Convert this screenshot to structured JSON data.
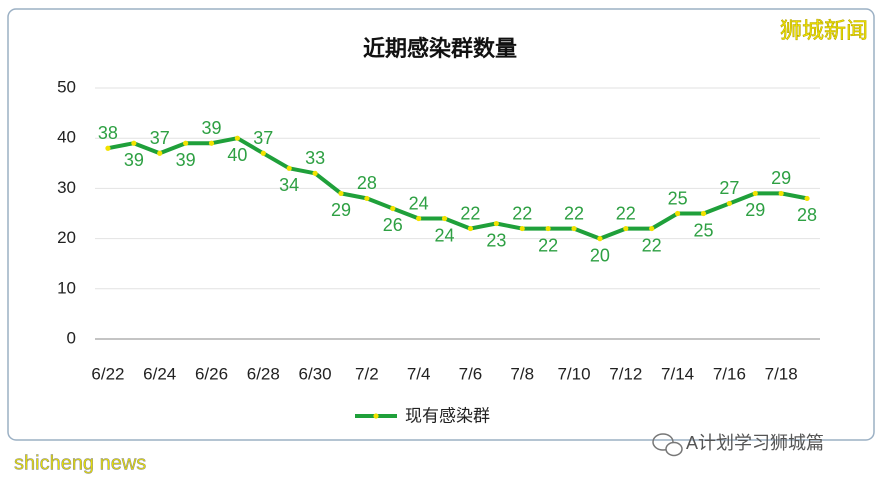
{
  "chart_data": {
    "type": "line",
    "title": "近期感染群数量",
    "categories": [
      "6/22",
      null,
      "6/24",
      null,
      "6/26",
      null,
      "6/28",
      null,
      "6/30",
      null,
      "7/2",
      null,
      "7/4",
      null,
      "7/6",
      null,
      "7/8",
      null,
      "7/10",
      null,
      "7/12",
      null,
      "7/14",
      null,
      "7/16",
      null,
      "7/18",
      null
    ],
    "series": [
      {
        "name": "现有感染群",
        "color": "#1fa03a",
        "marker_color": "#f2e200",
        "values": [
          38,
          39,
          37,
          39,
          39,
          40,
          37,
          34,
          33,
          29,
          28,
          26,
          24,
          24,
          22,
          23,
          22,
          22,
          22,
          20,
          22,
          22,
          25,
          25,
          27,
          29,
          29,
          28
        ]
      }
    ],
    "ylim": [
      0,
      50
    ],
    "yticks": [
      0,
      10,
      20,
      30,
      40,
      50
    ],
    "grid": true,
    "legend": "bottom"
  },
  "watermark": "狮城新闻",
  "footer_source": "shicheng news",
  "footer_channel": "A计划学习狮城篇"
}
